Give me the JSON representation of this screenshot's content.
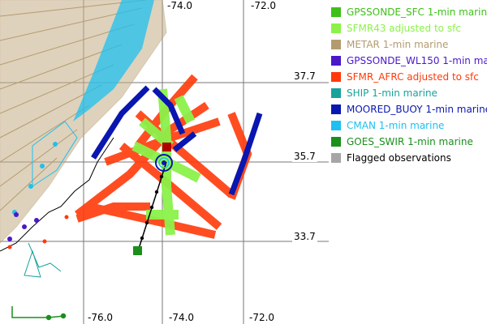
{
  "map": {
    "axis_labels": {
      "top_lon_a": "-74.0",
      "top_lon_b": "-72.0",
      "bottom_lon_a": "-76.0",
      "bottom_lon_b": "-74.0",
      "bottom_lon_c": "-72.0",
      "lat_a": "37.7",
      "lat_b": "35.7",
      "lat_c": "33.7"
    },
    "center_marker": "storm-center-circle",
    "track": "black storm track line with dots"
  },
  "legend": {
    "items": [
      {
        "label": "GPSSONDE_SFC 1-min marine",
        "color": "#3fbf1a"
      },
      {
        "label": "SFMR43 adjusted to sfc",
        "color": "#8cf24a"
      },
      {
        "label": "METAR 1-min marine",
        "color": "#b39b6f"
      },
      {
        "label": "GPSSONDE_WL150 1-min marine",
        "color": "#4b18c8"
      },
      {
        "label": "SFMR_AFRC adjusted to sfc",
        "color": "#ff3a0a"
      },
      {
        "label": "SHIP 1-min marine",
        "color": "#17a39a"
      },
      {
        "label": "MOORED_BUOY 1-min marine",
        "color": "#0a16b0"
      },
      {
        "label": "CMAN 1-min marine",
        "color": "#1ec0f0"
      },
      {
        "label": "GOES_SWIR 1-min marine",
        "color": "#1a8f1a"
      },
      {
        "label": "Flagged observations",
        "color": "#a6a6a6"
      }
    ]
  }
}
